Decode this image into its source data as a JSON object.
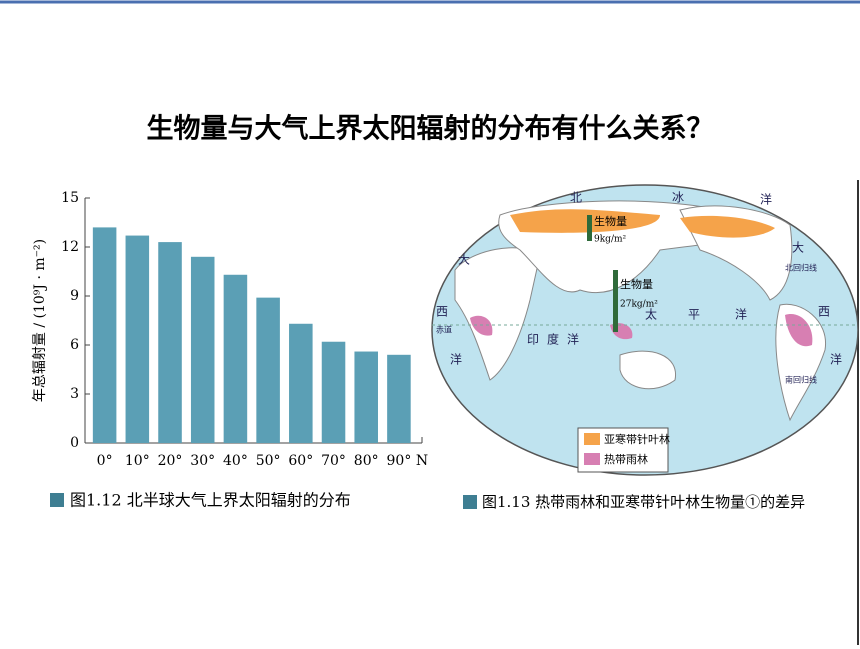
{
  "slide_title": "生物量与大气上界太阳辐射的分布有什么关系？",
  "chart_data": {
    "type": "bar",
    "title": "图1.12  北半球大气上界太阳辐射的分布",
    "y_label": "年总辐射量 / (10⁹J · m⁻²)",
    "categories": [
      "0°",
      "10°",
      "20°",
      "30°",
      "40°",
      "50°",
      "60°",
      "70°",
      "80°",
      "90°"
    ],
    "x_end_label": "N",
    "values": [
      13.2,
      12.7,
      12.3,
      11.4,
      10.3,
      8.9,
      7.3,
      6.2,
      5.6,
      5.4
    ],
    "color": "#5b9fb5",
    "ylim": [
      0,
      15
    ],
    "yticks": [
      0,
      3,
      6,
      9,
      12,
      15
    ],
    "grid": false
  },
  "map": {
    "caption": "图1.13  热带雨林和亚寒带针叶林生物量①的差异",
    "legend": [
      "亚寒带针叶林",
      "热带雨林"
    ],
    "biomass_labels": [
      {
        "name": "生物量",
        "value": "9kg/m²"
      },
      {
        "name": "生物量",
        "value": "27kg/m²"
      }
    ],
    "ocean_labels": [
      "北",
      "冰",
      "洋",
      "大",
      "西",
      "洋",
      "印",
      "度",
      "洋",
      "太",
      "平",
      "洋",
      "大",
      "西",
      "洋"
    ],
    "line_labels": [
      "赤道",
      "北回归线",
      "南回归线"
    ]
  }
}
